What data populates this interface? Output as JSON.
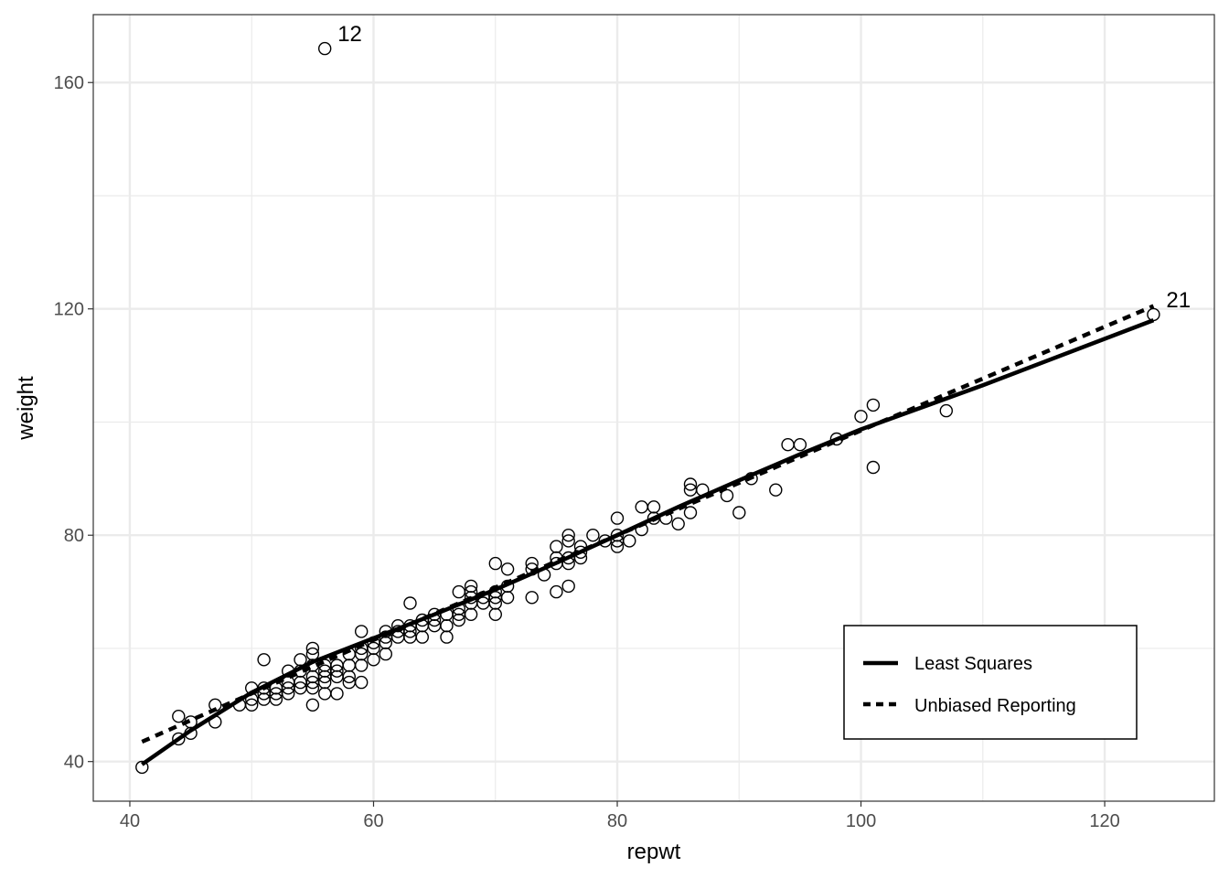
{
  "chart_data": {
    "type": "scatter",
    "title": "",
    "xlabel": "repwt",
    "ylabel": "weight",
    "xlim": [
      37,
      129
    ],
    "ylim": [
      33,
      172
    ],
    "x_ticks": [
      40,
      60,
      80,
      100,
      120
    ],
    "y_ticks": [
      40,
      80,
      120,
      160
    ],
    "x_minor_ticks": [
      50,
      70,
      90,
      110
    ],
    "y_minor_ticks": [
      60,
      100,
      140
    ],
    "grid": true,
    "legend_position": "bottom-right",
    "points": [
      [
        56,
        166
      ],
      [
        124,
        119
      ],
      [
        41,
        39
      ],
      [
        44,
        44
      ],
      [
        44,
        48
      ],
      [
        45,
        45
      ],
      [
        45,
        47
      ],
      [
        47,
        47
      ],
      [
        47,
        50
      ],
      [
        49,
        50
      ],
      [
        50,
        50
      ],
      [
        50,
        51
      ],
      [
        50,
        53
      ],
      [
        51,
        51
      ],
      [
        51,
        52
      ],
      [
        51,
        53
      ],
      [
        51,
        58
      ],
      [
        52,
        51
      ],
      [
        52,
        52
      ],
      [
        52,
        53
      ],
      [
        53,
        52
      ],
      [
        53,
        53
      ],
      [
        53,
        54
      ],
      [
        53,
        56
      ],
      [
        54,
        53
      ],
      [
        54,
        54
      ],
      [
        54,
        56
      ],
      [
        54,
        58
      ],
      [
        55,
        50
      ],
      [
        55,
        53
      ],
      [
        55,
        54
      ],
      [
        55,
        55
      ],
      [
        55,
        57
      ],
      [
        55,
        59
      ],
      [
        55,
        60
      ],
      [
        56,
        52
      ],
      [
        56,
        54
      ],
      [
        56,
        55
      ],
      [
        56,
        56
      ],
      [
        56,
        57
      ],
      [
        57,
        52
      ],
      [
        57,
        55
      ],
      [
        57,
        56
      ],
      [
        57,
        57
      ],
      [
        58,
        54
      ],
      [
        58,
        55
      ],
      [
        58,
        57
      ],
      [
        58,
        59
      ],
      [
        59,
        54
      ],
      [
        59,
        57
      ],
      [
        59,
        59
      ],
      [
        59,
        60
      ],
      [
        59,
        63
      ],
      [
        60,
        58
      ],
      [
        60,
        60
      ],
      [
        60,
        61
      ],
      [
        61,
        59
      ],
      [
        61,
        61
      ],
      [
        61,
        62
      ],
      [
        61,
        63
      ],
      [
        62,
        62
      ],
      [
        62,
        63
      ],
      [
        62,
        64
      ],
      [
        63,
        62
      ],
      [
        63,
        63
      ],
      [
        63,
        64
      ],
      [
        63,
        68
      ],
      [
        64,
        62
      ],
      [
        64,
        64
      ],
      [
        64,
        65
      ],
      [
        65,
        64
      ],
      [
        65,
        65
      ],
      [
        65,
        66
      ],
      [
        66,
        62
      ],
      [
        66,
        64
      ],
      [
        66,
        66
      ],
      [
        67,
        65
      ],
      [
        67,
        66
      ],
      [
        67,
        67
      ],
      [
        67,
        70
      ],
      [
        68,
        66
      ],
      [
        68,
        68
      ],
      [
        68,
        69
      ],
      [
        68,
        70
      ],
      [
        68,
        71
      ],
      [
        69,
        68
      ],
      [
        69,
        69
      ],
      [
        70,
        66
      ],
      [
        70,
        68
      ],
      [
        70,
        69
      ],
      [
        70,
        70
      ],
      [
        70,
        75
      ],
      [
        71,
        69
      ],
      [
        71,
        71
      ],
      [
        71,
        74
      ],
      [
        73,
        69
      ],
      [
        73,
        74
      ],
      [
        73,
        75
      ],
      [
        74,
        73
      ],
      [
        75,
        70
      ],
      [
        75,
        75
      ],
      [
        75,
        76
      ],
      [
        75,
        78
      ],
      [
        76,
        71
      ],
      [
        76,
        75
      ],
      [
        76,
        76
      ],
      [
        76,
        79
      ],
      [
        76,
        80
      ],
      [
        77,
        76
      ],
      [
        77,
        77
      ],
      [
        77,
        78
      ],
      [
        78,
        80
      ],
      [
        79,
        79
      ],
      [
        80,
        78
      ],
      [
        80,
        79
      ],
      [
        80,
        80
      ],
      [
        80,
        83
      ],
      [
        81,
        79
      ],
      [
        82,
        81
      ],
      [
        82,
        85
      ],
      [
        83,
        83
      ],
      [
        83,
        85
      ],
      [
        84,
        83
      ],
      [
        85,
        82
      ],
      [
        86,
        84
      ],
      [
        86,
        88
      ],
      [
        86,
        89
      ],
      [
        87,
        88
      ],
      [
        89,
        87
      ],
      [
        90,
        84
      ],
      [
        91,
        90
      ],
      [
        93,
        88
      ],
      [
        94,
        96
      ],
      [
        95,
        96
      ],
      [
        98,
        97
      ],
      [
        100,
        101
      ],
      [
        101,
        92
      ],
      [
        101,
        103
      ],
      [
        107,
        102
      ]
    ],
    "point_labels": [
      {
        "text": "12",
        "x": 56,
        "y": 166
      },
      {
        "text": "21",
        "x": 124,
        "y": 119
      }
    ],
    "series": [
      {
        "name": "Least Squares",
        "style": "solid",
        "x": [
          41,
          45,
          50,
          55,
          60,
          65,
          70,
          75,
          80,
          85,
          90,
          95,
          100,
          110,
          124
        ],
        "y": [
          39.5,
          45.5,
          52.2,
          57.6,
          61.8,
          66,
          70.4,
          75.1,
          80,
          85,
          89.7,
          94.3,
          98.7,
          106.5,
          118
        ]
      },
      {
        "name": "Unbiased Reporting",
        "style": "dashed",
        "x": [
          41,
          60,
          80,
          100,
          124
        ],
        "y": [
          43.5,
          61.5,
          80,
          98.5,
          120.5
        ]
      }
    ],
    "colors": {
      "points": "#000000",
      "lines": "#000000",
      "grid": "#ebebeb",
      "panel_border": "#333333"
    }
  }
}
